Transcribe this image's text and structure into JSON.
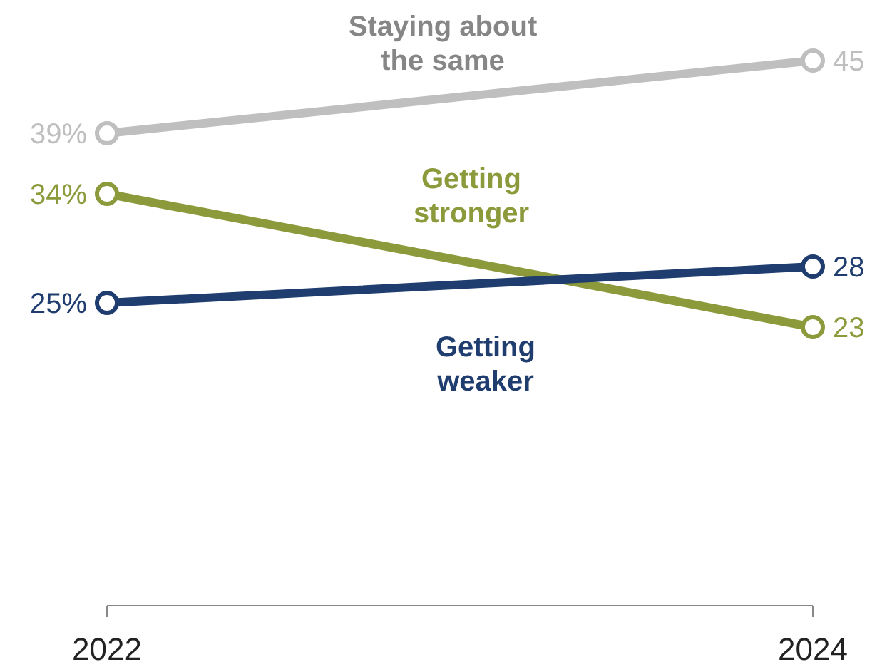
{
  "chart_data": {
    "type": "line",
    "categories": [
      "2022",
      "2024"
    ],
    "ylim": [
      0,
      50
    ],
    "tick_labels": "x",
    "marker": "circle",
    "series": [
      {
        "name": "Staying about the same",
        "color": "#bfbfbf",
        "values": [
          39,
          45
        ],
        "value_labels": [
          "39%",
          "45"
        ]
      },
      {
        "name": "Getting stronger",
        "color": "#8c9a3c",
        "values": [
          34,
          23
        ],
        "value_labels": [
          "34%",
          "23"
        ]
      },
      {
        "name": "Getting weaker",
        "color": "#1f3d6e",
        "values": [
          25,
          28
        ],
        "value_labels": [
          "25%",
          "28"
        ]
      }
    ]
  }
}
